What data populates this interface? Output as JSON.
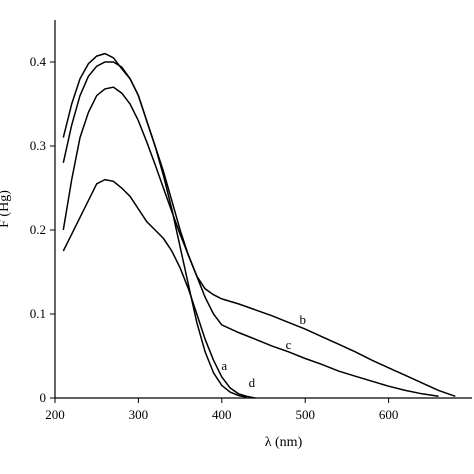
{
  "chart_data": {
    "type": "line",
    "title": "",
    "xlabel": "λ (nm)",
    "ylabel": "F (Hg)",
    "xlim": [
      200,
      700
    ],
    "ylim": [
      0,
      0.45
    ],
    "xticks": [
      200,
      300,
      400,
      500,
      600
    ],
    "yticks": [
      0,
      0.1,
      0.2,
      0.3,
      0.4
    ],
    "grid": false,
    "legend": "none",
    "series": [
      {
        "name": "a",
        "x": [
          210,
          220,
          230,
          240,
          250,
          260,
          270,
          280,
          290,
          300,
          310,
          320,
          330,
          340,
          350,
          360,
          370,
          380,
          390,
          400,
          410,
          420,
          430
        ],
        "y": [
          0.31,
          0.35,
          0.38,
          0.398,
          0.407,
          0.41,
          0.405,
          0.392,
          0.38,
          0.36,
          0.33,
          0.3,
          0.265,
          0.225,
          0.18,
          0.135,
          0.09,
          0.055,
          0.03,
          0.015,
          0.007,
          0.003,
          0.001
        ]
      },
      {
        "name": "b",
        "x": [
          210,
          220,
          230,
          240,
          250,
          260,
          270,
          280,
          290,
          300,
          310,
          320,
          330,
          340,
          350,
          360,
          370,
          380,
          390,
          400,
          420,
          440,
          460,
          480,
          500,
          520,
          540,
          560,
          580,
          600,
          620,
          640,
          660,
          680
        ],
        "y": [
          0.28,
          0.325,
          0.36,
          0.383,
          0.395,
          0.4,
          0.4,
          0.394,
          0.38,
          0.36,
          0.33,
          0.3,
          0.27,
          0.235,
          0.2,
          0.17,
          0.145,
          0.13,
          0.123,
          0.118,
          0.112,
          0.105,
          0.098,
          0.09,
          0.082,
          0.073,
          0.064,
          0.055,
          0.045,
          0.036,
          0.027,
          0.018,
          0.009,
          0.002
        ]
      },
      {
        "name": "c",
        "x": [
          210,
          220,
          230,
          240,
          250,
          260,
          270,
          280,
          290,
          300,
          310,
          320,
          330,
          340,
          350,
          360,
          370,
          380,
          390,
          400,
          420,
          440,
          460,
          480,
          500,
          520,
          540,
          560,
          580,
          600,
          620,
          640,
          660
        ],
        "y": [
          0.2,
          0.26,
          0.31,
          0.34,
          0.36,
          0.368,
          0.37,
          0.363,
          0.35,
          0.33,
          0.305,
          0.278,
          0.25,
          0.222,
          0.195,
          0.17,
          0.145,
          0.12,
          0.1,
          0.087,
          0.078,
          0.07,
          0.062,
          0.055,
          0.047,
          0.04,
          0.032,
          0.026,
          0.02,
          0.014,
          0.009,
          0.005,
          0.002
        ]
      },
      {
        "name": "d",
        "x": [
          210,
          220,
          230,
          240,
          250,
          260,
          270,
          280,
          290,
          300,
          310,
          320,
          330,
          340,
          350,
          360,
          370,
          380,
          390,
          400,
          410,
          420,
          430,
          440
        ],
        "y": [
          0.175,
          0.195,
          0.215,
          0.235,
          0.255,
          0.26,
          0.258,
          0.25,
          0.24,
          0.225,
          0.21,
          0.2,
          0.19,
          0.175,
          0.155,
          0.13,
          0.1,
          0.07,
          0.045,
          0.025,
          0.012,
          0.005,
          0.002,
          0.0
        ]
      }
    ],
    "series_labels": [
      {
        "text": "a",
        "x": 403,
        "y": 0.038
      },
      {
        "text": "b",
        "x": 497,
        "y": 0.093
      },
      {
        "text": "c",
        "x": 480,
        "y": 0.063
      },
      {
        "text": "d",
        "x": 436,
        "y": 0.018
      }
    ]
  }
}
